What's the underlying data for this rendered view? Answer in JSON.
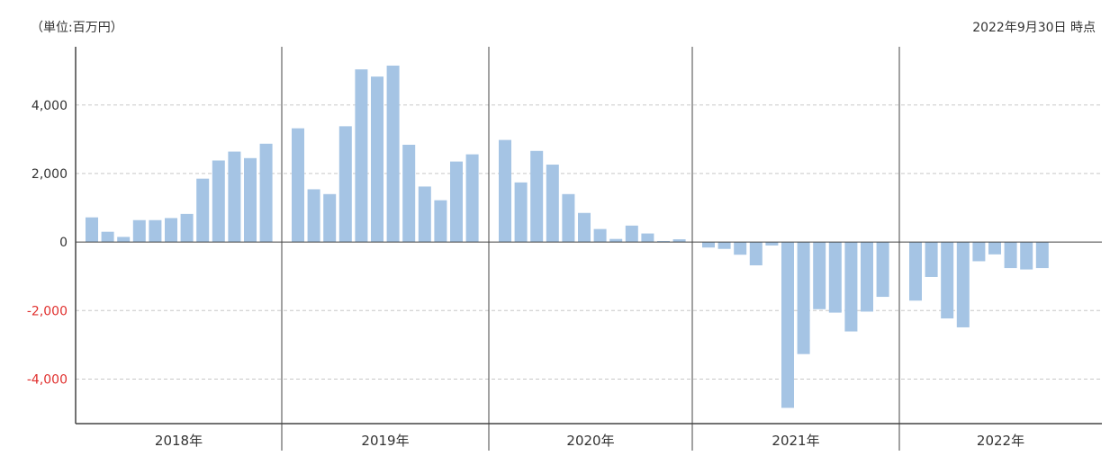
{
  "header": {
    "unit_label": "（単位:百万円）",
    "as_of_label": "2022年9月30日 時点"
  },
  "chart_data": {
    "type": "bar",
    "title": "",
    "xlabel": "",
    "ylabel": "",
    "ylim": [
      -5300,
      5700
    ],
    "y_ticks": [
      {
        "value": 4000,
        "label": "4,000"
      },
      {
        "value": 2000,
        "label": "2,000"
      },
      {
        "value": 0,
        "label": "0"
      },
      {
        "value": -2000,
        "label": "-2,000"
      },
      {
        "value": -4000,
        "label": "-4,000"
      }
    ],
    "grid": true,
    "colors": {
      "bar": "#a5c4e4",
      "negative_tick": "#e0302e",
      "axis": "#444444",
      "grid": "#c8c8c8"
    },
    "groups": [
      {
        "label": "2018年",
        "values": [
          720,
          300,
          150,
          640,
          640,
          700,
          820,
          1850,
          2380,
          2640,
          2450,
          2870
        ]
      },
      {
        "label": "2019年",
        "values": [
          3320,
          1540,
          1400,
          3380,
          5040,
          4830,
          5150,
          2840,
          1620,
          1220,
          2350,
          2560
        ]
      },
      {
        "label": "2020年",
        "values": [
          2980,
          1740,
          2660,
          2260,
          1400,
          850,
          380,
          90,
          480,
          250,
          30,
          80
        ]
      },
      {
        "label": "2021年",
        "values": [
          -160,
          -200,
          -370,
          -680,
          -100,
          -4840,
          -3270,
          -1960,
          -2060,
          -2610,
          -2030,
          -1600
        ]
      },
      {
        "label": "2022年",
        "values": [
          -1710,
          -1020,
          -2230,
          -2490,
          -560,
          -360,
          -760,
          -800,
          -760
        ]
      }
    ]
  }
}
